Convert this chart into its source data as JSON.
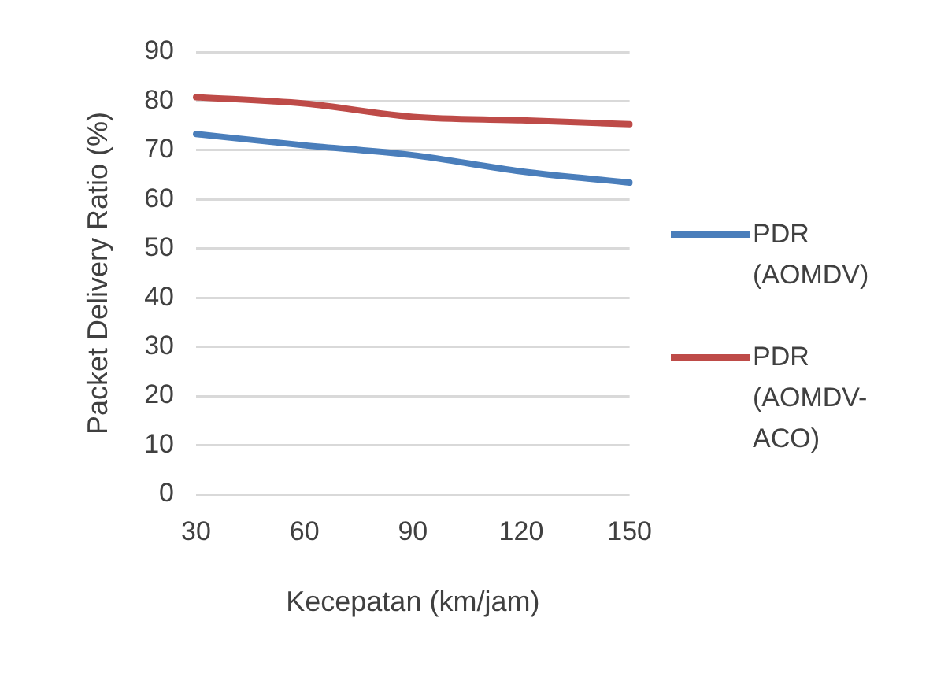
{
  "chart_data": {
    "type": "line",
    "xlabel": "Kecepatan (km/jam)",
    "ylabel": "Packet Delivery Ratio (%)",
    "categories": [
      "30",
      "60",
      "90",
      "120",
      "150"
    ],
    "series": [
      {
        "name": "PDR (AOMDV)",
        "color": "#4a7ebb",
        "values": [
          73.3,
          71,
          69,
          65.7,
          63.4
        ]
      },
      {
        "name": "PDR (AOMDV-ACO)",
        "color": "#be4b48",
        "values": [
          80.8,
          79.5,
          76.8,
          76.1,
          75.3
        ]
      }
    ],
    "ylim": [
      0,
      90
    ],
    "yticks": [
      0,
      10,
      20,
      30,
      40,
      50,
      60,
      70,
      80,
      90
    ],
    "grid": "y",
    "legend": "right",
    "marker": "none"
  }
}
